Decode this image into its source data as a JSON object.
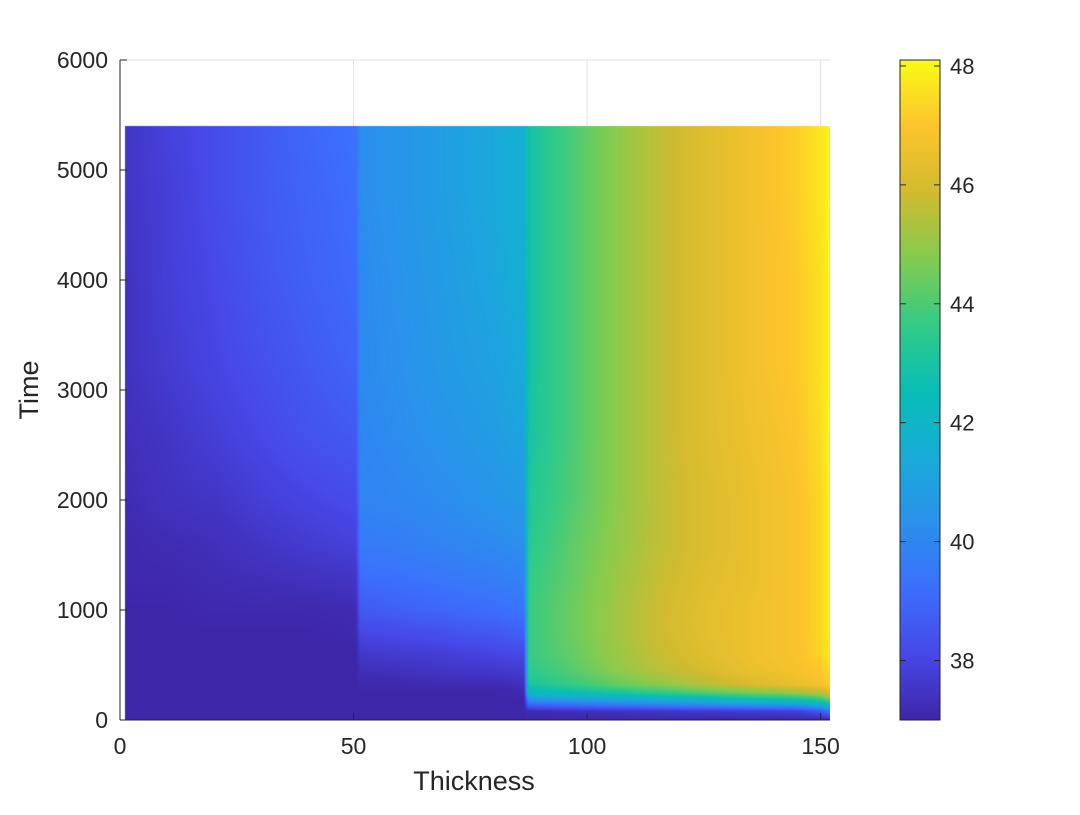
{
  "chart_data": {
    "type": "heatmap",
    "title": "",
    "xlabel": "Thickness",
    "ylabel": "Time",
    "xlim": [
      0,
      152
    ],
    "ylim": [
      0,
      6000
    ],
    "x_ticks": [
      0,
      50,
      100,
      150
    ],
    "y_ticks": [
      0,
      1000,
      2000,
      3000,
      4000,
      5000,
      6000
    ],
    "grid": true,
    "data_extent": {
      "x": [
        1,
        152
      ],
      "y": [
        0,
        5400
      ]
    },
    "layer_boundaries": [
      51,
      87
    ],
    "colorbar": {
      "position": "right",
      "colormap": "parula",
      "limits": [
        37,
        48.1
      ],
      "ticks": [
        38,
        40,
        42,
        44,
        46,
        48
      ]
    },
    "z_grid": {
      "x": [
        1,
        10,
        20,
        30,
        40,
        50.5,
        51.5,
        60,
        70,
        80,
        86.5,
        87.5,
        95,
        105,
        115,
        125,
        135,
        145,
        150,
        152
      ],
      "y": [
        0,
        80,
        160,
        240,
        320,
        450,
        600,
        800,
        1000,
        1300,
        1600,
        2000,
        2600,
        3200,
        4000,
        4800,
        5400
      ],
      "values": [
        [
          37.0,
          37.0,
          37.0,
          37.0,
          37.0,
          37.0,
          37.0,
          37.0,
          37.0,
          37.0,
          37.0,
          37.0,
          37.0,
          37.0,
          37.0,
          37.0,
          37.0,
          37.0,
          37.0,
          37.0
        ],
        [
          37.0,
          37.0,
          37.0,
          37.0,
          37.0,
          37.0,
          37.0,
          37.0,
          37.0,
          37.0,
          37.0,
          37.2,
          37.3,
          37.4,
          37.5,
          37.6,
          37.7,
          37.8,
          38.5,
          39.5
        ],
        [
          37.0,
          37.0,
          37.0,
          37.0,
          37.0,
          37.0,
          37.0,
          37.0,
          37.0,
          37.0,
          37.0,
          39.5,
          39.8,
          40.2,
          40.6,
          41.0,
          41.4,
          41.8,
          42.5,
          43.5
        ],
        [
          37.0,
          37.0,
          37.0,
          37.0,
          37.0,
          37.0,
          37.0,
          37.0,
          37.0,
          37.0,
          37.1,
          42.0,
          42.3,
          42.8,
          43.3,
          43.8,
          44.3,
          44.8,
          45.3,
          46.0
        ],
        [
          37.0,
          37.0,
          37.0,
          37.0,
          37.0,
          37.0,
          37.1,
          37.1,
          37.2,
          37.2,
          37.3,
          43.0,
          43.5,
          44.2,
          44.8,
          45.4,
          46.0,
          46.5,
          46.8,
          47.2
        ],
        [
          37.0,
          37.0,
          37.0,
          37.0,
          37.0,
          37.0,
          37.3,
          37.4,
          37.5,
          37.6,
          37.7,
          43.5,
          44.0,
          44.8,
          45.5,
          46.0,
          46.5,
          46.8,
          47.0,
          47.5
        ],
        [
          37.0,
          37.0,
          37.0,
          37.0,
          37.0,
          37.0,
          37.6,
          37.7,
          37.8,
          38.0,
          38.1,
          43.7,
          44.2,
          45.0,
          45.7,
          46.2,
          46.6,
          46.9,
          47.3,
          47.8
        ],
        [
          37.0,
          37.0,
          37.0,
          37.0,
          37.0,
          37.1,
          38.1,
          38.2,
          38.4,
          38.6,
          38.8,
          43.7,
          44.3,
          45.1,
          45.8,
          46.3,
          46.6,
          46.9,
          47.4,
          47.9
        ],
        [
          37.0,
          37.0,
          37.1,
          37.1,
          37.1,
          37.2,
          38.6,
          38.8,
          39.0,
          39.2,
          39.4,
          43.7,
          44.3,
          45.1,
          45.8,
          46.3,
          46.6,
          46.9,
          47.4,
          47.9
        ],
        [
          37.1,
          37.1,
          37.2,
          37.3,
          37.4,
          37.5,
          39.2,
          39.3,
          39.5,
          39.7,
          39.9,
          43.6,
          44.2,
          45.0,
          45.7,
          46.2,
          46.5,
          46.9,
          47.4,
          47.9
        ],
        [
          37.1,
          37.2,
          37.3,
          37.5,
          37.7,
          37.9,
          39.6,
          39.7,
          39.9,
          40.1,
          40.3,
          43.4,
          44.1,
          44.9,
          45.6,
          46.1,
          46.5,
          46.9,
          47.4,
          47.9
        ],
        [
          37.2,
          37.4,
          37.5,
          37.8,
          38.0,
          38.2,
          39.9,
          40.0,
          40.2,
          40.5,
          40.7,
          43.2,
          43.9,
          44.8,
          45.6,
          46.1,
          46.5,
          46.9,
          47.4,
          47.9
        ],
        [
          37.3,
          37.5,
          37.8,
          38.1,
          38.4,
          38.6,
          40.0,
          40.2,
          40.5,
          40.8,
          41.1,
          43.0,
          43.8,
          44.8,
          45.6,
          46.2,
          46.6,
          47.0,
          47.5,
          48.0
        ],
        [
          37.4,
          37.7,
          38.0,
          38.3,
          38.6,
          38.9,
          40.1,
          40.3,
          40.7,
          41.0,
          41.4,
          42.9,
          43.8,
          44.8,
          45.6,
          46.2,
          46.7,
          47.1,
          47.6,
          48.0
        ],
        [
          37.4,
          37.8,
          38.1,
          38.5,
          38.8,
          39.1,
          40.1,
          40.4,
          40.8,
          41.2,
          41.6,
          42.9,
          43.8,
          44.8,
          45.6,
          46.2,
          46.7,
          47.1,
          47.6,
          48.0
        ],
        [
          37.5,
          37.8,
          38.2,
          38.6,
          38.9,
          39.2,
          40.2,
          40.5,
          40.9,
          41.3,
          41.7,
          42.9,
          43.8,
          44.8,
          45.6,
          46.2,
          46.7,
          47.2,
          47.7,
          48.0
        ],
        [
          37.5,
          37.9,
          38.2,
          38.6,
          39.0,
          39.3,
          40.2,
          40.5,
          40.9,
          41.3,
          41.7,
          42.9,
          43.8,
          44.8,
          45.6,
          46.2,
          46.7,
          47.2,
          47.7,
          48.0
        ]
      ]
    }
  }
}
